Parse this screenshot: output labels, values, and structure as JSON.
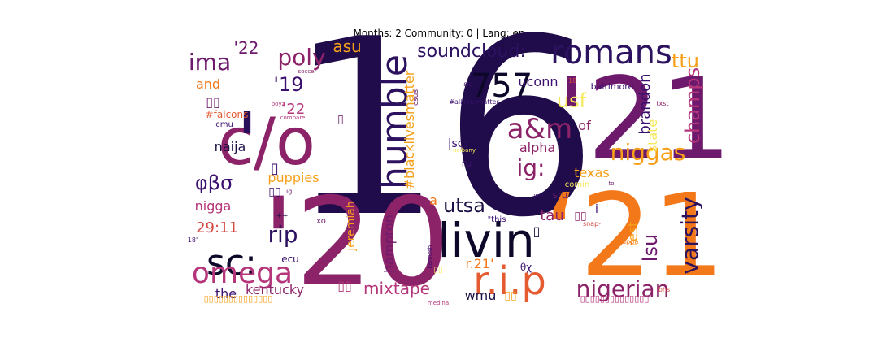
{
  "chart_data": {
    "type": "wordcloud",
    "title": "Months: 2 Community: 0 | Lang: en",
    "colormap": [
      "#1d0f45",
      "#3b0f6f",
      "#6a176e",
      "#8c2369",
      "#b5367a",
      "#d44842",
      "#e45a31",
      "#f37819",
      "#f6a019",
      "#f2c93b",
      "#f5e85a",
      "#fcfdbf"
    ],
    "words": [
      {
        "text": "16",
        "rank": 1,
        "color": "#200c4a"
      },
      {
        "text": "'21",
        "rank": 2,
        "color": "#6d1a6d"
      },
      {
        "text": "'20",
        "rank": 3,
        "color": "#8c2369"
      },
      {
        "text": "‘21",
        "rank": 4,
        "color": "#f37819"
      },
      {
        "text": "c/o",
        "rank": 5,
        "color": "#8c2369"
      },
      {
        "text": "'",
        "rank": 6,
        "color": "#2a0f5a"
      },
      {
        "text": "livin",
        "rank": 7,
        "color": "#0d0829"
      },
      {
        "text": "humble",
        "rank": 8,
        "color": "#2c115f"
      },
      {
        "text": "sc:",
        "rank": 9,
        "color": "#0d0829"
      },
      {
        "text": "romans",
        "rank": 10,
        "color": "#2c115f"
      },
      {
        "text": "omega",
        "rank": 11,
        "color": "#b5367a"
      },
      {
        "text": "r.i.p",
        "rank": 12,
        "color": "#e45a31"
      },
      {
        "text": "a&m",
        "rank": 13,
        "color": "#8c2369"
      },
      {
        "text": "varsity",
        "rank": 14,
        "color": "#2c115f"
      },
      {
        "text": "niggas",
        "rank": 15,
        "color": "#f6a019"
      },
      {
        "text": "champs",
        "rank": 16,
        "color": "#b5367a"
      },
      {
        "text": "nigerian",
        "rank": 17,
        "color": "#8c2369"
      },
      {
        "text": "757",
        "rank": 18,
        "color": "#0d0829"
      },
      {
        "text": "poly",
        "rank": 19,
        "color": "#8c2369"
      },
      {
        "text": "ima",
        "rank": 20,
        "color": "#6d1a6d"
      },
      {
        "text": "ig:",
        "rank": 21,
        "color": "#8c2369"
      },
      {
        "text": "ttu",
        "rank": 22,
        "color": "#f6a019"
      },
      {
        "text": "utsa",
        "rank": 23,
        "color": "#1d0f45"
      },
      {
        "text": "rip",
        "rank": 24,
        "color": "#2c115f"
      },
      {
        "text": "soundcloud:",
        "rank": 25,
        "color": "#2c115f"
      },
      {
        "text": "lsu",
        "rank": 26,
        "color": "#6d1a6d"
      },
      {
        "text": "φβσ",
        "rank": 27,
        "color": "#3b0f6f"
      },
      {
        "text": "usf",
        "rank": 28,
        "color": "#f5e85a"
      },
      {
        "text": "brandon",
        "rank": 29,
        "color": "#3b0f6f"
      },
      {
        "text": "mixtape",
        "rank": 30,
        "color": "#b5367a"
      },
      {
        "text": "'19",
        "rank": 31,
        "color": "#3b0f6f"
      },
      {
        "text": "'22",
        "rank": 32,
        "color": "#6d1a6d"
      },
      {
        "text": "‘22",
        "rank": 33,
        "color": "#b5367a"
      },
      {
        "text": "29:11",
        "rank": 34,
        "color": "#d44842"
      },
      {
        "text": "uconn",
        "rank": 35,
        "color": "#3b0f6f"
      },
      {
        "text": "asu",
        "rank": 36,
        "color": "#f6a019"
      },
      {
        "text": "naija",
        "rank": 37,
        "color": "#1d0f45"
      },
      {
        "text": "tau",
        "rank": 38,
        "color": "#8c2369"
      },
      {
        "text": "kentucky",
        "rank": 39,
        "color": "#8c2369"
      },
      {
        "text": "#blacklivesmatter",
        "rank": 40,
        "color": "#f6a019"
      },
      {
        "text": "texas",
        "rank": 41,
        "color": "#f6a019"
      },
      {
        "text": "alpha",
        "rank": 42,
        "color": "#8c2369"
      },
      {
        "text": "hampton",
        "rank": 43,
        "color": "#6d1a6d"
      },
      {
        "text": "jeremiah",
        "rank": 44,
        "color": "#f6a019"
      },
      {
        "text": "r.21'",
        "rank": 45,
        "color": "#f37819"
      },
      {
        "text": "state",
        "rank": 46,
        "color": "#f5e85a"
      },
      {
        "text": "of",
        "rank": 47,
        "color": "#8c2369"
      },
      {
        "text": "puppies",
        "rank": 48,
        "color": "#f6a019"
      },
      {
        "text": "nigga",
        "rank": 49,
        "color": "#b5367a"
      },
      {
        "text": "rest",
        "rank": 50,
        "color": "#f6a019"
      },
      {
        "text": "wmu",
        "rank": 51,
        "color": "#1d0f45"
      },
      {
        "text": "the",
        "rank": 52,
        "color": "#3b0f6f"
      },
      {
        "text": "and",
        "rank": 53,
        "color": "#f37819"
      },
      {
        "text": "a",
        "rank": 54,
        "color": "#f37819"
      },
      {
        "text": "|sc:",
        "rank": 55,
        "color": "#3b0f6f"
      },
      {
        "text": "ru",
        "rank": 56,
        "color": "#3b0f6f"
      },
      {
        "text": "i",
        "rank": 57,
        "color": "#3b0f6f"
      },
      {
        "text": "sru",
        "rank": 58,
        "color": "#6d1a6d"
      },
      {
        "text": "\"this",
        "rank": 59,
        "color": "#3b0f6f"
      },
      {
        "text": "xo",
        "rank": 60,
        "color": "#6d1a6d"
      },
      {
        "text": "ecu",
        "rank": 61,
        "color": "#3b0f6f"
      },
      {
        "text": "cmu",
        "rank": 62,
        "color": "#3b0f6f"
      },
      {
        "text": "#falcons",
        "rank": 63,
        "color": "#e45a31"
      },
      {
        "text": "baltimore",
        "rank": 64,
        "color": "#3b0f6f"
      },
      {
        "text": "#alllivesmatter",
        "rank": 65,
        "color": "#3b0f6f"
      },
      {
        "text": "csus",
        "rank": 66,
        "color": "#6d1a6d"
      },
      {
        "text": "θχ",
        "rank": 67,
        "color": "#3b0f6f"
      },
      {
        "text": "comin",
        "rank": 68,
        "color": "#f5e85a"
      },
      {
        "text": "snap-",
        "rank": 69,
        "color": "#d44842"
      },
      {
        "text": "kappa",
        "rank": 70,
        "color": "#f37819"
      },
      {
        "text": "bhs",
        "rank": 71,
        "color": "#d44842"
      },
      {
        "text": "txst",
        "rank": 72,
        "color": "#8c2369"
      },
      {
        "text": "'18",
        "rank": 73,
        "color": "#d44842"
      },
      {
        "text": "slo",
        "rank": 74,
        "color": "#3b0f6f"
      },
      {
        "text": "soccer",
        "rank": 75,
        "color": "#8c2369"
      },
      {
        "text": "boyz",
        "rank": 76,
        "color": "#b5367a"
      },
      {
        "text": "compare",
        "rank": 77,
        "color": "#b5367a"
      },
      {
        "text": "ualbany",
        "rank": 78,
        "color": "#f5e85a"
      },
      {
        "text": "wvu",
        "rank": 79,
        "color": "#3b0f6f"
      },
      {
        "text": "to",
        "rank": 80,
        "color": "#6d1a6d"
      },
      {
        "text": "kenneth",
        "rank": 81,
        "color": "#3b0f6f"
      },
      {
        "text": "medina",
        "rank": 82,
        "color": "#b5367a"
      },
      {
        "text": "18'",
        "rank": 83,
        "color": "#3b0f6f"
      },
      {
        "text": "++",
        "rank": 84,
        "color": "#1d0f45"
      },
      {
        "text": "ig:",
        "rank": 85,
        "color": "#6d1a6d"
      },
      {
        "text": "▯▯",
        "rank": 86,
        "color": "#6d1a6d"
      },
      {
        "text": "▯▯",
        "rank": 87,
        "color": "#b5367a"
      },
      {
        "text": "▯▯",
        "rank": 88,
        "color": "#8c2369"
      },
      {
        "text": "▯▯",
        "rank": 89,
        "color": "#f6a019"
      },
      {
        "text": "▯▯",
        "rank": 90,
        "color": "#3b0f6f"
      },
      {
        "text": "▯▯",
        "rank": 91,
        "color": "#f5e85a"
      },
      {
        "text": "▯",
        "rank": 92,
        "color": "#3b0f6f"
      },
      {
        "text": "▯",
        "rank": 93,
        "color": "#1d0f45"
      },
      {
        "text": "▯",
        "rank": 94,
        "color": "#6d1a6d"
      },
      {
        "text": "▯▯▯▯▯▯▯▯▯▯▯▯▯▯",
        "rank": 95,
        "color": "#f6a019"
      },
      {
        "text": "▯▯▯▯▯▯▯▯▯▯▯▯▯▯",
        "rank": 96,
        "color": "#b5367a"
      }
    ]
  }
}
